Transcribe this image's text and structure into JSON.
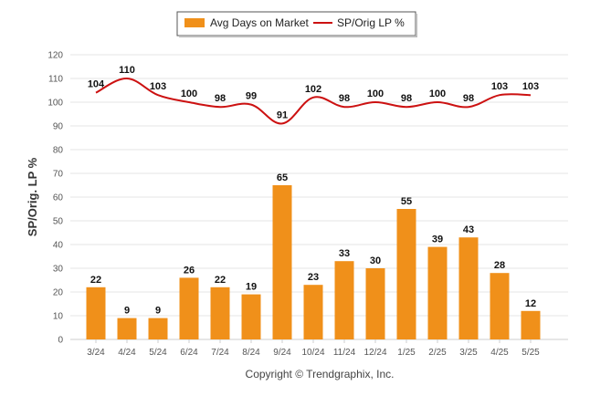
{
  "legend": {
    "bar_label": "Avg Days on Market",
    "line_label": "SP/Orig LP %"
  },
  "footer": {
    "copyright": "Copyright © Trendgraphix, Inc."
  },
  "colors": {
    "bar": "#f0901a",
    "line": "#cc1111",
    "grid": "#e6e6e6"
  },
  "chart_data": {
    "type": "bar",
    "categories": [
      "3/24",
      "4/24",
      "5/24",
      "6/24",
      "7/24",
      "8/24",
      "9/24",
      "10/24",
      "11/24",
      "12/24",
      "1/25",
      "2/25",
      "3/25",
      "4/25",
      "5/25"
    ],
    "series": [
      {
        "name": "Avg Days on Market",
        "type": "bar",
        "values": [
          22,
          9,
          9,
          26,
          22,
          19,
          65,
          23,
          33,
          30,
          55,
          39,
          43,
          28,
          12
        ]
      },
      {
        "name": "SP/Orig LP %",
        "type": "line",
        "values": [
          104,
          110,
          103,
          100,
          98,
          99,
          91,
          102,
          98,
          100,
          98,
          100,
          98,
          103,
          103
        ]
      }
    ],
    "ylabel": "SP/Orig. LP %",
    "ylim": [
      0,
      120
    ],
    "yticks": [
      0,
      10,
      20,
      30,
      40,
      50,
      60,
      70,
      80,
      90,
      100,
      110,
      120
    ],
    "grid": true,
    "legend_position": "top-center"
  }
}
